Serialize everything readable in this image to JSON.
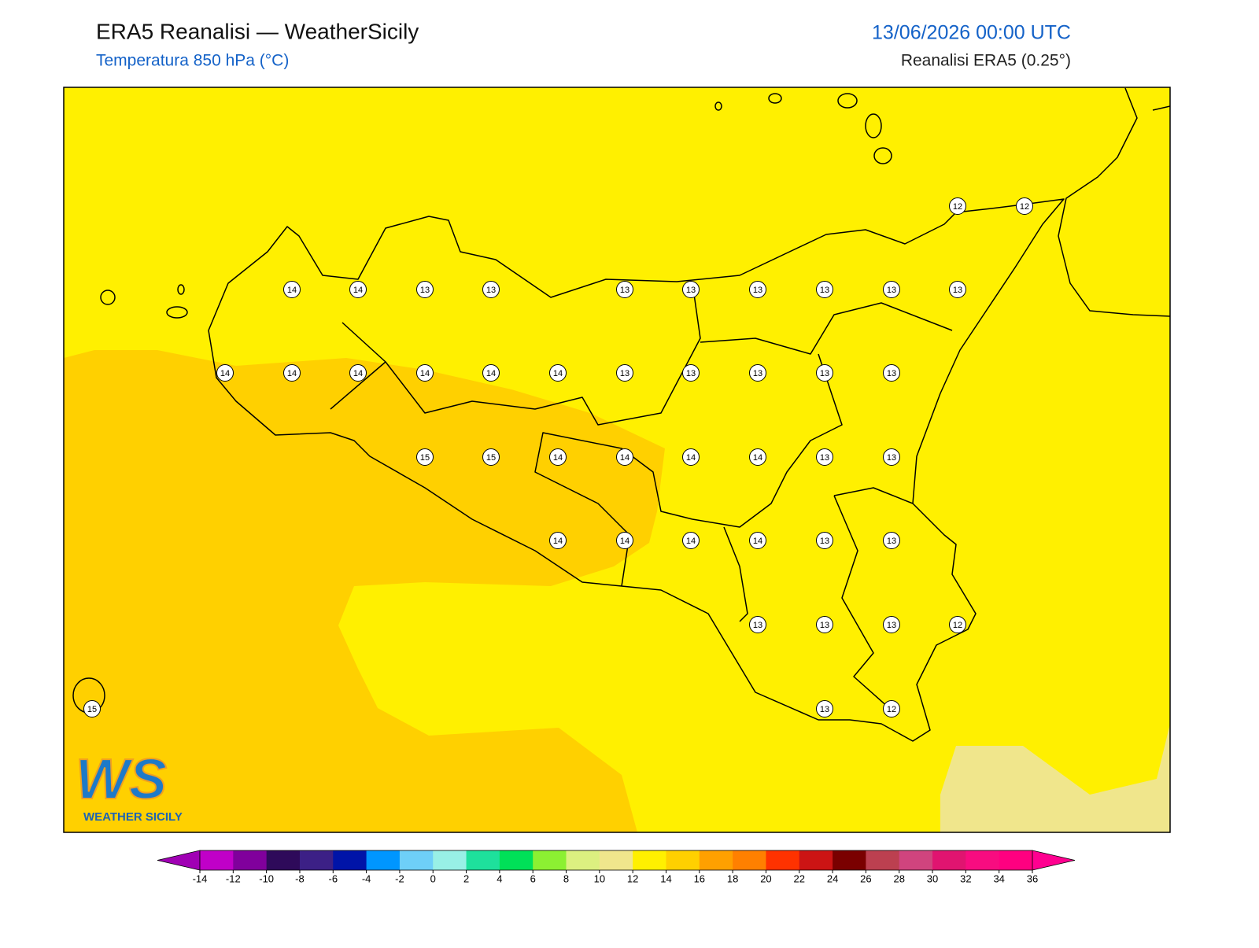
{
  "header": {
    "title": "ERA5 Reanalisi — WeatherSicily",
    "subtitle": "Temperatura 850 hPa (°C)",
    "date": "13/06/2026 00:00 UTC",
    "source": "Reanalisi ERA5 (0.25°)"
  },
  "grid_labels": [
    12,
    12,
    14,
    14,
    13,
    13,
    13,
    13,
    13,
    13,
    13,
    13,
    14,
    14,
    14,
    14,
    14,
    14,
    13,
    13,
    13,
    13,
    13,
    15,
    15,
    14,
    14,
    14,
    14,
    13,
    13,
    14,
    14,
    14,
    14,
    13,
    13,
    13,
    13,
    13,
    12,
    15,
    13,
    12
  ],
  "logo": {
    "letters": "WS",
    "text": "WEATHER SICILY"
  },
  "colorbar": {
    "ticks": [
      -14,
      -12,
      -10,
      -8,
      -6,
      -4,
      -2,
      0,
      2,
      4,
      6,
      8,
      10,
      12,
      14,
      16,
      18,
      20,
      22,
      24,
      26,
      28,
      30,
      32,
      34,
      36
    ],
    "colors": [
      "#c000c8",
      "#80009c",
      "#2e0a5a",
      "#3c2086",
      "#0014a8",
      "#0096ff",
      "#6ecff8",
      "#98f0e6",
      "#1ee09c",
      "#00e058",
      "#8cf032",
      "#dcf080",
      "#f0e68c",
      "#fff000",
      "#ffd000",
      "#ffa000",
      "#ff8000",
      "#ff3200",
      "#cc1414",
      "#7a0000",
      "#bc4050",
      "#d0447e",
      "#e01470",
      "#f80c80",
      "#ff0080"
    ],
    "under_color": "#a000b4",
    "over_color": "#ff0090"
  }
}
